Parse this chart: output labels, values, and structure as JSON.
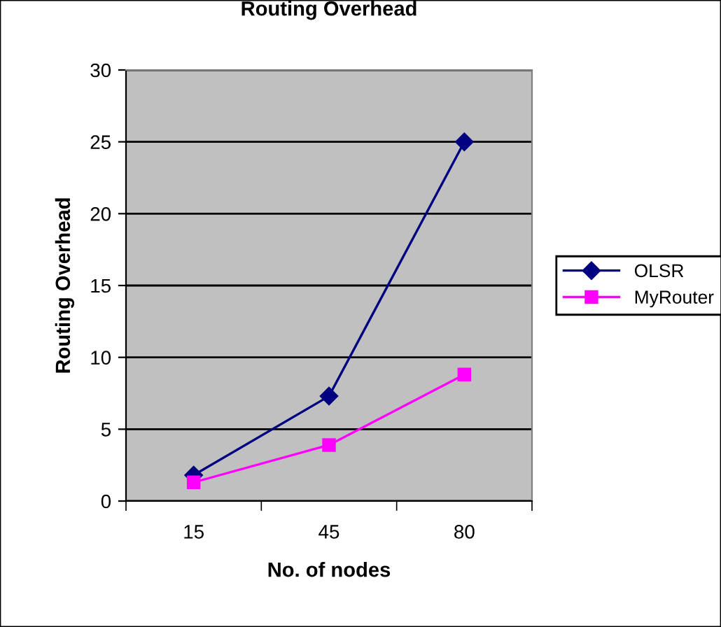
{
  "chart_data": {
    "type": "line",
    "title": "Routing Overhead",
    "xlabel": "No. of nodes",
    "ylabel": "Routing Overhead",
    "categories": [
      "15",
      "45",
      "80"
    ],
    "series": [
      {
        "name": "OLSR",
        "color": "#000080",
        "values": [
          1.8,
          7.3,
          25
        ],
        "marker": "diamond"
      },
      {
        "name": "MyRouter",
        "color": "#ff00ff",
        "values": [
          1.3,
          3.9,
          8.8
        ],
        "marker": "square"
      }
    ],
    "ylim": [
      0,
      30
    ],
    "yticks": [
      0,
      5,
      10,
      15,
      20,
      25,
      30
    ],
    "grid": "y",
    "legend": "right",
    "line_style": "solid"
  }
}
